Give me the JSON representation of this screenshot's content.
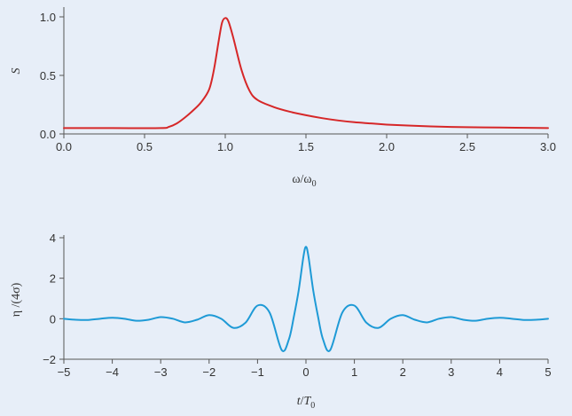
{
  "page": {
    "background": "#e7eef8"
  },
  "chart_data": [
    {
      "type": "line",
      "xlabel_main": "ω/ω",
      "xlabel_sub": "0",
      "ylabel": "S",
      "xlim": [
        0.0,
        3.0
      ],
      "ylim": [
        0.0,
        1.0
      ],
      "x_ticks": [
        "0.0",
        "0.5",
        "1.0",
        "1.5",
        "2.0",
        "2.5",
        "3.0"
      ],
      "y_ticks": [
        "0.0",
        "0.5",
        "1.0"
      ],
      "grid": false,
      "series": [
        {
          "color": "#d62728",
          "x": [
            0.0,
            0.3,
            0.6,
            0.65,
            0.7,
            0.75,
            0.8,
            0.85,
            0.9,
            0.93,
            0.96,
            0.98,
            1.0,
            1.02,
            1.05,
            1.1,
            1.15,
            1.2,
            1.3,
            1.4,
            1.5,
            1.6,
            1.7,
            1.8,
            1.9,
            2.0,
            2.2,
            2.4,
            2.6,
            2.8,
            3.0
          ],
          "y": [
            0.05,
            0.05,
            0.05,
            0.06,
            0.09,
            0.14,
            0.2,
            0.27,
            0.38,
            0.55,
            0.8,
            0.95,
            0.99,
            0.96,
            0.82,
            0.55,
            0.37,
            0.29,
            0.23,
            0.19,
            0.16,
            0.135,
            0.115,
            0.1,
            0.09,
            0.08,
            0.068,
            0.06,
            0.056,
            0.053,
            0.05
          ]
        }
      ]
    },
    {
      "type": "line",
      "xlabel_t": "t",
      "xlabel_slash": "/",
      "xlabel_T": "T",
      "xlabel_sub": "0",
      "ylabel": "η /(4σ)",
      "xlim": [
        -5,
        5
      ],
      "ylim": [
        -2,
        4
      ],
      "x_ticks": [
        "−5",
        "−4",
        "−3",
        "−2",
        "−1",
        "0",
        "1",
        "2",
        "3",
        "4",
        "5"
      ],
      "y_ticks": [
        "−2",
        "0",
        "2",
        "4"
      ],
      "grid": false,
      "series": [
        {
          "color": "#1e9ad6",
          "x": [
            -5.0,
            -4.75,
            -4.5,
            -4.25,
            -4.0,
            -3.75,
            -3.5,
            -3.25,
            -3.0,
            -2.75,
            -2.5,
            -2.25,
            -2.0,
            -1.75,
            -1.5,
            -1.25,
            -1.0,
            -0.75,
            -0.5,
            -0.35,
            -0.25,
            -0.15,
            -0.05,
            0.0,
            0.05,
            0.15,
            0.25,
            0.35,
            0.5,
            0.75,
            1.0,
            1.25,
            1.5,
            1.75,
            2.0,
            2.25,
            2.5,
            2.75,
            3.0,
            3.25,
            3.5,
            3.75,
            4.0,
            4.25,
            4.5,
            4.75,
            5.0
          ],
          "y": [
            0.0,
            -0.05,
            -0.06,
            0.0,
            0.05,
            0.0,
            -0.1,
            -0.05,
            0.08,
            0.0,
            -0.18,
            -0.05,
            0.18,
            0.0,
            -0.45,
            -0.2,
            0.65,
            0.3,
            -1.55,
            -1.0,
            0.1,
            1.4,
            3.1,
            3.55,
            3.1,
            1.4,
            0.1,
            -1.0,
            -1.55,
            0.3,
            0.65,
            -0.2,
            -0.45,
            0.0,
            0.18,
            -0.05,
            -0.18,
            0.0,
            0.08,
            -0.05,
            -0.1,
            0.0,
            0.05,
            0.0,
            -0.06,
            -0.05,
            0.0
          ]
        }
      ]
    }
  ]
}
